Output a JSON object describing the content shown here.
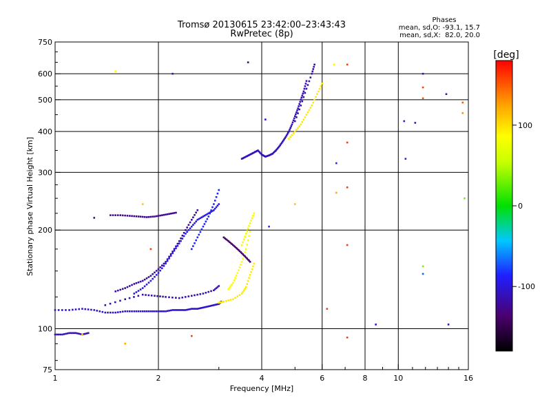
{
  "chart_data": {
    "type": "scatter",
    "title": "Tromsø 20130615 23:42:00–23:43:43",
    "subtitle": "RwPretec (8p)",
    "phases_stats": {
      "heading": "Phases",
      "line_o": "mean, sd,O: -93.1, 15.7",
      "line_x": "mean, sd,X:  82.0, 20.0"
    },
    "xlabel": "Frequency [MHz]",
    "ylabel": "Stationary phase Virtual Height [km]",
    "xscale": "log",
    "yscale": "log",
    "xlim": [
      1,
      16
    ],
    "ylim": [
      75,
      750
    ],
    "grid": true,
    "x_ticks": [
      1,
      2,
      4,
      6,
      8,
      10,
      16
    ],
    "y_ticks": [
      75,
      100,
      200,
      300,
      400,
      500,
      600,
      750
    ],
    "x_gridlines": [
      2,
      4,
      6,
      8,
      10
    ],
    "y_gridlines": [
      100,
      200,
      300,
      400,
      500,
      600
    ],
    "colorbar": {
      "label": "[deg]",
      "range": [
        -180,
        180
      ],
      "ticks": [
        100,
        0,
        -100
      ]
    },
    "traces": [
      {
        "f": [
          1.0,
          1.1,
          1.2,
          1.3,
          1.4,
          1.5,
          1.6,
          1.7,
          1.8,
          1.9,
          2.0,
          2.1,
          2.2,
          2.3,
          2.4,
          2.5,
          2.6,
          2.7,
          2.8,
          2.9,
          3.0,
          3.05
        ],
        "h": [
          114,
          114,
          115,
          114,
          112,
          112,
          113,
          113,
          113,
          113,
          113,
          113,
          114,
          114,
          114,
          115,
          115,
          116,
          117,
          118,
          119,
          121
        ],
        "phase": -105
      },
      {
        "f": [
          1.4,
          1.6,
          1.8,
          1.95,
          2.1,
          2.3,
          2.5,
          2.7,
          2.9,
          3.0
        ],
        "h": [
          118,
          123,
          127,
          126,
          125,
          124,
          126,
          128,
          131,
          135
        ],
        "phase": -115
      },
      {
        "f": [
          3.0,
          3.1,
          3.3,
          3.5,
          3.6,
          3.7,
          3.8
        ],
        "h": [
          120,
          121,
          123,
          128,
          134,
          146,
          158
        ],
        "phase": 95
      },
      {
        "f": [
          3.2,
          3.3,
          3.4,
          3.5,
          3.6,
          3.7
        ],
        "h": [
          132,
          138,
          148,
          160,
          175,
          198
        ],
        "phase": 85
      },
      {
        "f": [
          1.5,
          1.6,
          1.7,
          1.8,
          1.9,
          2.0,
          2.1,
          2.2,
          2.3,
          2.4,
          2.5,
          2.6
        ],
        "h": [
          130,
          133,
          137,
          140,
          145,
          152,
          160,
          172,
          185,
          200,
          215,
          230
        ],
        "phase": -120
      },
      {
        "f": [
          1.7,
          1.8,
          1.9,
          2.0,
          2.1,
          2.2,
          2.3,
          2.4,
          2.5,
          2.6,
          2.7,
          2.8,
          2.9,
          3.0
        ],
        "h": [
          128,
          133,
          140,
          148,
          158,
          170,
          182,
          195,
          205,
          215,
          220,
          225,
          230,
          240
        ],
        "phase": -95
      },
      {
        "f": [
          2.5,
          2.6,
          2.7,
          2.8,
          2.9,
          3.0
        ],
        "h": [
          175,
          190,
          205,
          220,
          240,
          265
        ],
        "phase": -85
      },
      {
        "f": [
          3.1,
          3.2,
          3.3,
          3.4,
          3.5,
          3.6,
          3.7
        ],
        "h": [
          190,
          185,
          180,
          175,
          170,
          165,
          160
        ],
        "phase": -140
      },
      {
        "f": [
          3.5,
          3.6,
          3.7,
          3.8
        ],
        "h": [
          180,
          195,
          210,
          225
        ],
        "phase": 80
      },
      {
        "f": [
          1.45,
          1.55,
          1.65,
          1.75,
          1.85,
          1.95,
          2.05,
          2.15,
          2.25
        ],
        "h": [
          222,
          222,
          221,
          220,
          219,
          220,
          222,
          224,
          226
        ],
        "phase": -125
      },
      {
        "f": [
          3.5,
          3.6,
          3.7,
          3.8,
          3.9,
          4.0,
          4.1,
          4.2,
          4.3,
          4.4,
          4.5,
          4.6,
          4.7,
          4.8,
          4.9,
          5.0,
          5.1,
          5.2,
          5.3,
          5.4
        ],
        "h": [
          330,
          335,
          340,
          345,
          350,
          340,
          335,
          338,
          342,
          350,
          360,
          372,
          385,
          400,
          420,
          445,
          470,
          500,
          530,
          570
        ],
        "phase": -110
      },
      {
        "f": [
          4.8,
          5.0,
          5.2,
          5.4,
          5.6,
          5.8,
          6.0
        ],
        "h": [
          380,
          400,
          420,
          450,
          480,
          520,
          560
        ],
        "phase": 95
      },
      {
        "f": [
          5.0,
          5.2,
          5.4,
          5.6,
          5.7
        ],
        "h": [
          430,
          480,
          540,
          600,
          640
        ],
        "phase": -115
      },
      {
        "f": [
          1.0,
          1.05,
          1.1,
          1.15,
          1.2,
          1.25
        ],
        "h": [
          96,
          96,
          97,
          97,
          96,
          97
        ],
        "phase": -110
      }
    ],
    "points": [
      {
        "f": 1.3,
        "h": 218,
        "phase": -120
      },
      {
        "f": 1.5,
        "h": 610,
        "phase": 90
      },
      {
        "f": 2.2,
        "h": 600,
        "phase": -110
      },
      {
        "f": 3.65,
        "h": 650,
        "phase": -130
      },
      {
        "f": 4.1,
        "h": 435,
        "phase": -100
      },
      {
        "f": 4.2,
        "h": 205,
        "phase": -85
      },
      {
        "f": 5.0,
        "h": 240,
        "phase": 110
      },
      {
        "f": 6.5,
        "h": 640,
        "phase": 90
      },
      {
        "f": 6.6,
        "h": 320,
        "phase": -85
      },
      {
        "f": 7.1,
        "h": 640,
        "phase": 160
      },
      {
        "f": 7.1,
        "h": 370,
        "phase": 160
      },
      {
        "f": 7.1,
        "h": 270,
        "phase": 160
      },
      {
        "f": 7.1,
        "h": 180,
        "phase": 160
      },
      {
        "f": 7.1,
        "h": 94,
        "phase": 160
      },
      {
        "f": 6.2,
        "h": 115,
        "phase": 160
      },
      {
        "f": 6.6,
        "h": 260,
        "phase": 120
      },
      {
        "f": 8.6,
        "h": 103,
        "phase": -110
      },
      {
        "f": 10.4,
        "h": 430,
        "phase": -90
      },
      {
        "f": 10.5,
        "h": 330,
        "phase": -85
      },
      {
        "f": 11.2,
        "h": 425,
        "phase": -100
      },
      {
        "f": 11.8,
        "h": 600,
        "phase": -110
      },
      {
        "f": 11.8,
        "h": 545,
        "phase": 160
      },
      {
        "f": 11.8,
        "h": 505,
        "phase": 150
      },
      {
        "f": 11.8,
        "h": 155,
        "phase": 30
      },
      {
        "f": 11.8,
        "h": 147,
        "phase": -70
      },
      {
        "f": 13.8,
        "h": 520,
        "phase": -110
      },
      {
        "f": 14.0,
        "h": 103,
        "phase": -110
      },
      {
        "f": 15.4,
        "h": 490,
        "phase": 150
      },
      {
        "f": 15.4,
        "h": 455,
        "phase": 130
      },
      {
        "f": 15.6,
        "h": 250,
        "phase": 30
      },
      {
        "f": 1.6,
        "h": 90,
        "phase": 120
      },
      {
        "f": 1.9,
        "h": 175,
        "phase": 160
      },
      {
        "f": 2.5,
        "h": 95,
        "phase": 160
      },
      {
        "f": 1.8,
        "h": 240,
        "phase": 110
      },
      {
        "f": 1.2,
        "h": 96,
        "phase": 110
      }
    ]
  }
}
